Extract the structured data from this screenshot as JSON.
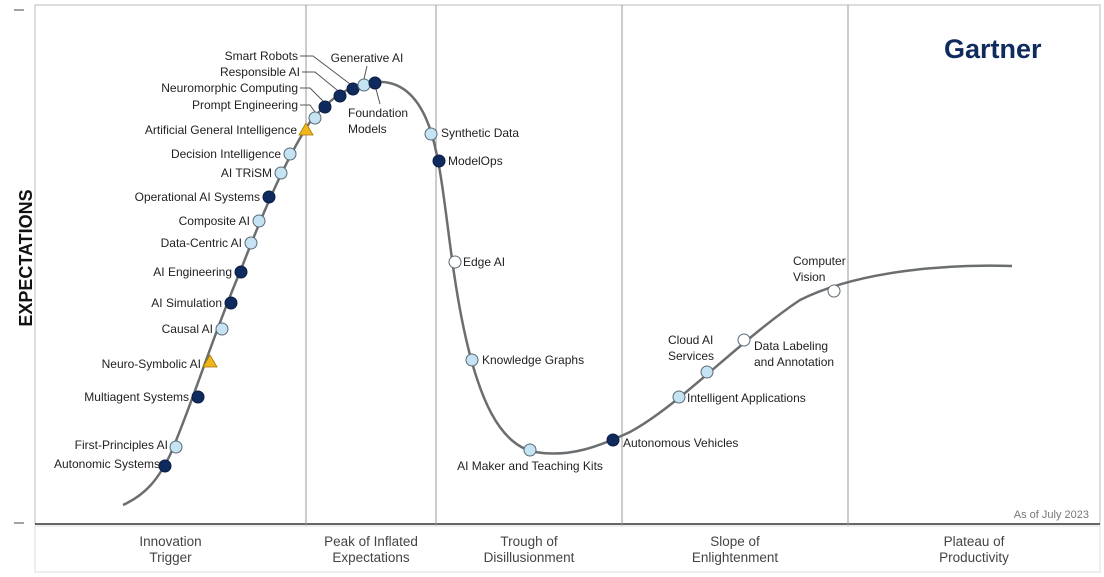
{
  "brand": "Gartner",
  "y_axis_label": "EXPECTATIONS",
  "as_of": "As of July 2023",
  "phases": [
    {
      "line1": "Innovation",
      "line2": "Trigger"
    },
    {
      "line1": "Peak of Inflated",
      "line2": "Expectations"
    },
    {
      "line1": "Trough of",
      "line2": "Disillusionment"
    },
    {
      "line1": "Slope of",
      "line2": "Enlightenment"
    },
    {
      "line1": "Plateau of",
      "line2": "Productivity"
    }
  ],
  "marker_colors": {
    "light": "#c5e3f3",
    "dark": "#0f2a5c",
    "white": "#ffffff",
    "triangle": "#f2b51c"
  },
  "technologies": [
    {
      "name": "Autonomic Systems",
      "marker": "dark"
    },
    {
      "name": "First-Principles AI",
      "marker": "light"
    },
    {
      "name": "Multiagent Systems",
      "marker": "dark"
    },
    {
      "name": "Neuro-Symbolic AI",
      "marker": "triangle"
    },
    {
      "name": "Causal AI",
      "marker": "light"
    },
    {
      "name": "AI Simulation",
      "marker": "dark"
    },
    {
      "name": "AI Engineering",
      "marker": "dark"
    },
    {
      "name": "Data-Centric AI",
      "marker": "light"
    },
    {
      "name": "Composite AI",
      "marker": "light"
    },
    {
      "name": "Operational AI Systems",
      "marker": "dark"
    },
    {
      "name": "AI TRiSM",
      "marker": "light"
    },
    {
      "name": "Decision Intelligence",
      "marker": "light"
    },
    {
      "name": "Artificial General Intelligence",
      "marker": "triangle"
    },
    {
      "name": "Prompt Engineering",
      "marker": "light"
    },
    {
      "name": "Neuromorphic Computing",
      "marker": "dark"
    },
    {
      "name": "Responsible AI",
      "marker": "dark"
    },
    {
      "name": "Smart Robots",
      "marker": "dark"
    },
    {
      "name": "Generative AI",
      "marker": "light"
    },
    {
      "name": "Foundation Models",
      "marker": "dark",
      "line1": "Foundation",
      "line2": "Models"
    },
    {
      "name": "Synthetic Data",
      "marker": "light"
    },
    {
      "name": "ModelOps",
      "marker": "dark"
    },
    {
      "name": "Edge AI",
      "marker": "white"
    },
    {
      "name": "Knowledge Graphs",
      "marker": "light"
    },
    {
      "name": "AI Maker and Teaching Kits",
      "marker": "light"
    },
    {
      "name": "Autonomous Vehicles",
      "marker": "dark"
    },
    {
      "name": "Intelligent Applications",
      "marker": "light"
    },
    {
      "name": "Cloud AI Services",
      "marker": "light",
      "line1": "Cloud AI",
      "line2": "Services"
    },
    {
      "name": "Data Labeling and Annotation",
      "marker": "white",
      "line1": "Data Labeling",
      "line2": "and Annotation"
    },
    {
      "name": "Computer Vision",
      "marker": "white",
      "line1": "Computer",
      "line2": "Vision"
    }
  ]
}
